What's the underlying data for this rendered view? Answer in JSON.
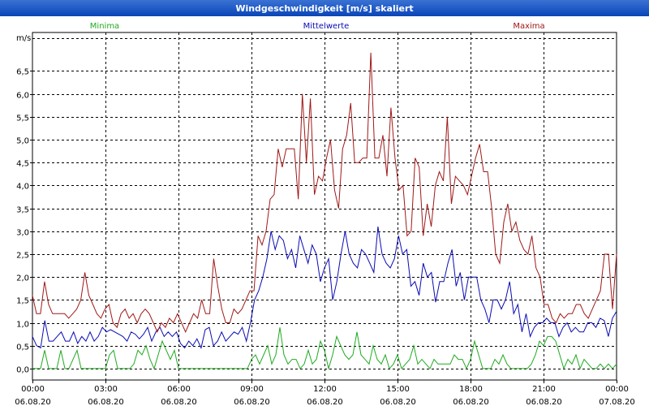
{
  "window": {
    "title": "Windgeschwindigkeit [m/s] skaliert"
  },
  "colors": {
    "minima": "#1faa1f",
    "mittel": "#0a0ab4",
    "maxima": "#a01818",
    "grid": "#000000",
    "title_bg": "#1a55c8"
  },
  "chart_data": {
    "type": "line",
    "title": "Windgeschwindigkeit [m/s] skaliert",
    "ylabel": "m/s",
    "ylim": [
      -0.25,
      7.2
    ],
    "yticks": [
      {
        "value": 0.0,
        "label": "0,0"
      },
      {
        "value": 0.5,
        "label": "0,5"
      },
      {
        "value": 1.0,
        "label": "1,0"
      },
      {
        "value": 1.5,
        "label": "1,5"
      },
      {
        "value": 2.0,
        "label": "2,0"
      },
      {
        "value": 2.5,
        "label": "2,5"
      },
      {
        "value": 3.0,
        "label": "3,0"
      },
      {
        "value": 3.5,
        "label": "3,5"
      },
      {
        "value": 4.0,
        "label": "4,0"
      },
      {
        "value": 4.5,
        "label": "4,5"
      },
      {
        "value": 5.0,
        "label": "5,0"
      },
      {
        "value": 5.5,
        "label": "5,5"
      },
      {
        "value": 6.0,
        "label": "6,0"
      },
      {
        "value": 6.5,
        "label": "6,5"
      }
    ],
    "xlim": [
      0,
      24
    ],
    "xticks": [
      {
        "value": 0,
        "time": "00:00",
        "date": "06.08.20"
      },
      {
        "value": 3,
        "time": "03:00",
        "date": "06.08.20"
      },
      {
        "value": 6,
        "time": "06:00",
        "date": "06.08.20"
      },
      {
        "value": 9,
        "time": "09:00",
        "date": "06.08.20"
      },
      {
        "value": 12,
        "time": "12:00",
        "date": "06.08.20"
      },
      {
        "value": 15,
        "time": "15:00",
        "date": "06.08.20"
      },
      {
        "value": 18,
        "time": "18:00",
        "date": "06.08.20"
      },
      {
        "value": 21,
        "time": "21:00",
        "date": "06.08.20"
      },
      {
        "value": 24,
        "time": "00:00",
        "date": "07.08.20"
      }
    ],
    "x_step_hours": 0.1667,
    "series": [
      {
        "name": "Minima",
        "color": "#1faa1f",
        "values": [
          0.0,
          0.0,
          0.0,
          0.4,
          0.0,
          0.0,
          0.0,
          0.4,
          0.0,
          0.0,
          0.2,
          0.4,
          0.0,
          0.0,
          0.0,
          0.0,
          0.0,
          0.0,
          0.0,
          0.0,
          0.0,
          0.0,
          0.0,
          0.0,
          0.0,
          0.0,
          0.0,
          0.1,
          0.4,
          0.0,
          0.0,
          0.0,
          0.0,
          0.2,
          0.4,
          0.5,
          0.2,
          0.6,
          0.4,
          0.2,
          0.2,
          0.0,
          0.4,
          0.2,
          0.0,
          0.0,
          0.0,
          0.0,
          0.0,
          0.0,
          0.0,
          0.0,
          0.0,
          0.0,
          0.0,
          0.0,
          0.0,
          0.0,
          0.0,
          0.0,
          0.0,
          0.0,
          0.0,
          0.0,
          0.0,
          0.0,
          0.0,
          0.0,
          0.0,
          0.0,
          0.0,
          0.0,
          0.0,
          0.0,
          0.0,
          0.0,
          0.0,
          0.0,
          0.0,
          0.0,
          0.0,
          0.0,
          0.0,
          0.0,
          0.0,
          0.0,
          0.0,
          0.0,
          0.0,
          0.0,
          0.0,
          0.0,
          0.0,
          0.0,
          0.0,
          0.0,
          0.0,
          0.0,
          0.0,
          0.0,
          0.0,
          0.0,
          0.0,
          0.0,
          0.0,
          0.0,
          0.0,
          0.0,
          0.0,
          0.0,
          0.0,
          0.0,
          0.0,
          0.0,
          0.0,
          0.0,
          0.0,
          0.0,
          0.0
        ],
        "display": "synthetic"
      }
    ]
  }
}
